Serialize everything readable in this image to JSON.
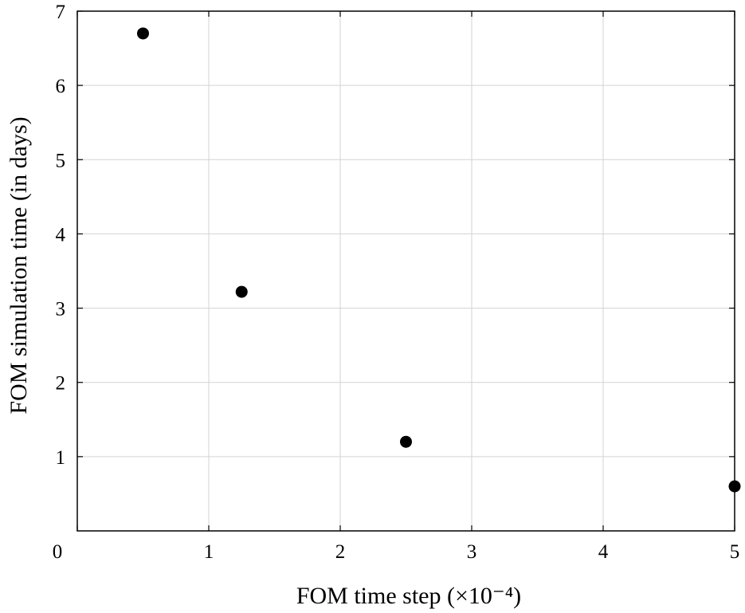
{
  "chart_data": {
    "type": "scatter",
    "title": "",
    "xlabel": "FOM time step (×10⁻⁴)",
    "ylabel": "FOM simulation time (in days)",
    "xlim": [
      0,
      5
    ],
    "ylim": [
      0,
      7
    ],
    "xticks": [
      0,
      1,
      2,
      3,
      4,
      5
    ],
    "yticks": [
      1,
      2,
      3,
      4,
      5,
      6,
      7
    ],
    "xtick_labels": [
      "0",
      "1",
      "2",
      "3",
      "4",
      "5"
    ],
    "ytick_labels": [
      "1",
      "2",
      "3",
      "4",
      "5",
      "6",
      "7"
    ],
    "grid": true,
    "marker_color": "#000000",
    "series": [
      {
        "x": [
          0.5,
          1.25,
          2.5,
          5.0
        ],
        "y": [
          6.7,
          3.22,
          1.2,
          0.6
        ]
      }
    ]
  }
}
